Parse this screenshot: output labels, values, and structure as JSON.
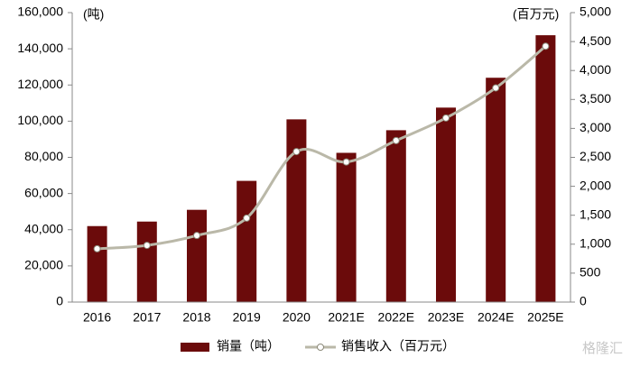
{
  "chart_data": {
    "type": "bar-line",
    "y_label": "(吨)",
    "y2_label": "(百万元)",
    "categories": [
      "2016",
      "2017",
      "2018",
      "2019",
      "2020",
      "2021E",
      "2022E",
      "2023E",
      "2024E",
      "2025E"
    ],
    "series": [
      {
        "name": "销量（吨）",
        "type": "bar",
        "color": "#6b0b0b",
        "values": [
          42000,
          44500,
          51000,
          67000,
          101000,
          82500,
          95000,
          107500,
          124000,
          147500
        ]
      },
      {
        "name": "销售收入（百万元）",
        "type": "line",
        "axis": "y2",
        "color": "#bab8a8",
        "values": [
          920,
          980,
          1150,
          1450,
          2600,
          2420,
          2790,
          3180,
          3700,
          4420
        ]
      }
    ],
    "ylim": [
      0,
      160000
    ],
    "yticks": [
      0,
      {
        "value": 20000,
        "label": "20,000"
      },
      {
        "value": 40000,
        "label": "40,000"
      },
      {
        "value": 60000,
        "label": "60,000"
      },
      {
        "value": 80000,
        "label": "80,000"
      },
      {
        "value": 100000,
        "label": "100,000"
      },
      {
        "value": 120000,
        "label": "120,000"
      },
      {
        "value": 140000,
        "label": "140,000"
      },
      {
        "value": 160000,
        "label": "160,000"
      }
    ],
    "y2lim": [
      0,
      5000
    ],
    "y2ticks": [
      0,
      500,
      {
        "value": 1000,
        "label": "1,000"
      },
      {
        "value": 1500,
        "label": "1,500"
      },
      {
        "value": 2000,
        "label": "2,000"
      },
      {
        "value": 2500,
        "label": "2,500"
      },
      {
        "value": 3000,
        "label": "3,000"
      },
      {
        "value": 3500,
        "label": "3,500"
      },
      {
        "value": 4000,
        "label": "4,000"
      },
      {
        "value": 4500,
        "label": "4,500"
      },
      {
        "value": 5000,
        "label": "5,000"
      }
    ],
    "watermark": "格隆汇"
  }
}
